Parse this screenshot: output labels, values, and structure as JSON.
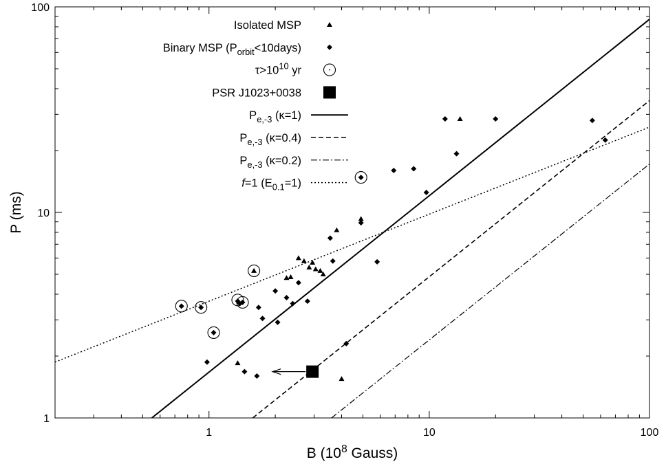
{
  "chart_data": {
    "type": "scatter",
    "xscale": "log",
    "yscale": "log",
    "xlim": [
      0.2,
      100
    ],
    "ylim": [
      1,
      100
    ],
    "xlabel": {
      "main": "B (10",
      "sup": "8",
      "tail": " Gauss)"
    },
    "ylabel": "P (ms)",
    "xticks": [
      {
        "value": 1,
        "label": "1"
      },
      {
        "value": 10,
        "label": "10"
      },
      {
        "value": 100,
        "label": "100"
      }
    ],
    "yticks": [
      {
        "value": 1,
        "label": "1"
      },
      {
        "value": 10,
        "label": "10"
      },
      {
        "value": 100,
        "label": "100"
      }
    ],
    "legend_position": "top-center",
    "legend": [
      {
        "id": "iso",
        "parts": [
          [
            "t",
            "Isolated MSP"
          ]
        ]
      },
      {
        "id": "bin",
        "parts": [
          [
            "t",
            "Binary MSP (P"
          ],
          [
            "sub",
            "orbit"
          ],
          [
            "t",
            "<10days)"
          ]
        ]
      },
      {
        "id": "tau",
        "parts": [
          [
            "t",
            "τ>10"
          ],
          [
            "sup",
            "10"
          ],
          [
            "t",
            " yr"
          ]
        ]
      },
      {
        "id": "psr",
        "parts": [
          [
            "t",
            "PSR J1023+0038"
          ]
        ]
      },
      {
        "id": "k1",
        "parts": [
          [
            "t",
            "P"
          ],
          [
            "sub",
            "e,-3"
          ],
          [
            "t",
            " (κ=1)"
          ]
        ]
      },
      {
        "id": "k04",
        "parts": [
          [
            "t",
            "P"
          ],
          [
            "sub",
            "e,-3"
          ],
          [
            "t",
            " (κ=0.4)"
          ]
        ]
      },
      {
        "id": "k02",
        "parts": [
          [
            "t",
            "P"
          ],
          [
            "sub",
            "e,-3"
          ],
          [
            "t",
            " (κ=0.2)"
          ]
        ]
      },
      {
        "id": "f1",
        "parts": [
          [
            "ti",
            "f"
          ],
          [
            "t",
            "=1 (E"
          ],
          [
            "sub",
            "0.1"
          ],
          [
            "t",
            "=1)"
          ]
        ]
      }
    ],
    "series": [
      {
        "name": "Isolated MSP",
        "marker": "triangle",
        "points": [
          [
            1.35,
            1.85
          ],
          [
            1.6,
            5.2
          ],
          [
            2.25,
            4.8
          ],
          [
            2.35,
            4.85
          ],
          [
            2.55,
            6.0
          ],
          [
            2.7,
            5.8
          ],
          [
            2.85,
            5.4
          ],
          [
            2.95,
            5.7
          ],
          [
            3.05,
            5.3
          ],
          [
            3.2,
            5.2
          ],
          [
            3.3,
            5.0
          ],
          [
            3.8,
            8.2
          ],
          [
            4.0,
            1.55
          ],
          [
            4.9,
            9.3
          ],
          [
            13.8,
            28.5
          ]
        ]
      },
      {
        "name": "Binary MSP (Porbit<10days)",
        "marker": "diamond",
        "points": [
          [
            0.75,
            3.5
          ],
          [
            0.92,
            3.45
          ],
          [
            0.98,
            1.87
          ],
          [
            1.05,
            2.6
          ],
          [
            1.35,
            3.7
          ],
          [
            1.38,
            3.6
          ],
          [
            1.42,
            3.65
          ],
          [
            1.45,
            1.68
          ],
          [
            1.65,
            1.6
          ],
          [
            1.68,
            3.45
          ],
          [
            1.75,
            3.05
          ],
          [
            2.0,
            4.15
          ],
          [
            2.05,
            2.92
          ],
          [
            2.25,
            3.85
          ],
          [
            2.4,
            3.6
          ],
          [
            2.55,
            4.55
          ],
          [
            2.8,
            3.7
          ],
          [
            3.55,
            7.5
          ],
          [
            3.65,
            5.8
          ],
          [
            4.2,
            2.3
          ],
          [
            4.9,
            14.8
          ],
          [
            4.9,
            8.9
          ],
          [
            5.8,
            5.75
          ],
          [
            6.9,
            16.0
          ],
          [
            8.5,
            16.3
          ],
          [
            9.7,
            12.5
          ],
          [
            11.8,
            28.5
          ],
          [
            13.3,
            19.3
          ],
          [
            20.0,
            28.5
          ],
          [
            55.0,
            28.0
          ],
          [
            63.0,
            22.5
          ]
        ]
      },
      {
        "name": "τ>10^10 yr",
        "marker": "circle",
        "points": [
          [
            0.75,
            3.5
          ],
          [
            0.92,
            3.45
          ],
          [
            1.05,
            2.6
          ],
          [
            1.35,
            3.75
          ],
          [
            1.42,
            3.65
          ],
          [
            1.6,
            5.2
          ],
          [
            4.9,
            14.8
          ]
        ]
      },
      {
        "name": "PSR J1023+0038",
        "marker": "square",
        "upper_limit_x": true,
        "points": [
          [
            2.95,
            1.68
          ]
        ]
      }
    ],
    "lines": [
      {
        "name": "Pe,-3 (κ=1)",
        "style": "solid",
        "x": [
          0.55,
          100
        ],
        "y": [
          1,
          87
        ]
      },
      {
        "name": "Pe,-3 (κ=0.4)",
        "style": "dashed",
        "x": [
          1.58,
          100
        ],
        "y": [
          1,
          35
        ]
      },
      {
        "name": "Pe,-3 (κ=0.2)",
        "style": "dashdot",
        "x": [
          3.6,
          100
        ],
        "y": [
          1,
          17.2
        ]
      },
      {
        "name": "f=1 (E0.1=1)",
        "style": "dotted",
        "x": [
          0.2,
          100
        ],
        "y": [
          1.87,
          26.0
        ]
      }
    ]
  }
}
